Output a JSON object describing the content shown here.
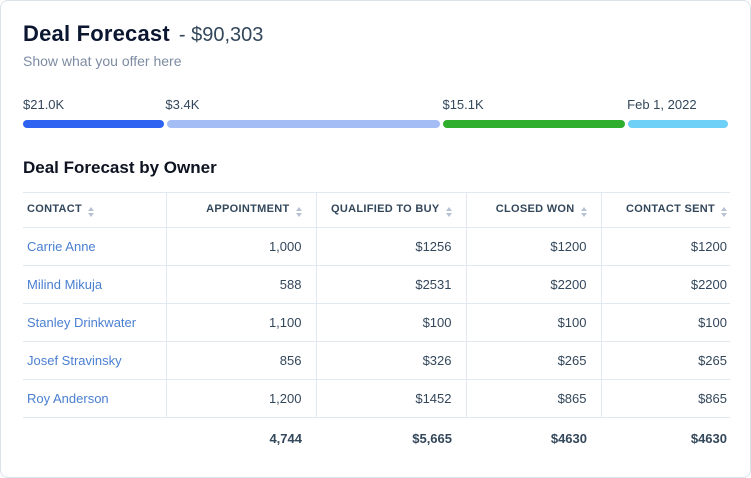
{
  "header": {
    "title": "Deal Forecast",
    "amount": "- $90,303",
    "subtitle": "Show what you offer here"
  },
  "progress": {
    "segments": [
      {
        "label": "$21.0K",
        "color": "#2e62f1",
        "width_pct": 20.2
      },
      {
        "label": "$3.4K",
        "color": "#a4bdf4",
        "width_pct": 39.3
      },
      {
        "label": "$15.1K",
        "color": "#2fad2c",
        "width_pct": 26.2
      },
      {
        "label": "Feb 1, 2022",
        "color": "#6fd0f7",
        "width_pct": 14.3
      }
    ]
  },
  "table": {
    "title": "Deal Forecast by Owner",
    "columns": [
      {
        "label": "CONTACT"
      },
      {
        "label": "APPOINTMENT"
      },
      {
        "label": "QUALIFIED TO BUY"
      },
      {
        "label": "CLOSED WON"
      },
      {
        "label": "CONTACT SENT"
      }
    ],
    "rows": [
      {
        "contact": "Carrie Anne",
        "appointment": "1,000",
        "qualified_to_buy": "$1256",
        "closed_won": "$1200",
        "contact_sent": "$1200"
      },
      {
        "contact": "Milind Mikuja",
        "appointment": "588",
        "qualified_to_buy": "$2531",
        "closed_won": "$2200",
        "contact_sent": "$2200"
      },
      {
        "contact": "Stanley Drinkwater",
        "appointment": "1,100",
        "qualified_to_buy": "$100",
        "closed_won": "$100",
        "contact_sent": "$100"
      },
      {
        "contact": "Josef Stravinsky",
        "appointment": "856",
        "qualified_to_buy": "$326",
        "closed_won": "$265",
        "contact_sent": "$265"
      },
      {
        "contact": "Roy Anderson",
        "appointment": "1,200",
        "qualified_to_buy": "$1452",
        "closed_won": "$865",
        "contact_sent": "$865"
      }
    ],
    "totals": {
      "appointment": "4,744",
      "qualified_to_buy": "$5,665",
      "closed_won": "$4630",
      "contact_sent": "$4630"
    }
  }
}
